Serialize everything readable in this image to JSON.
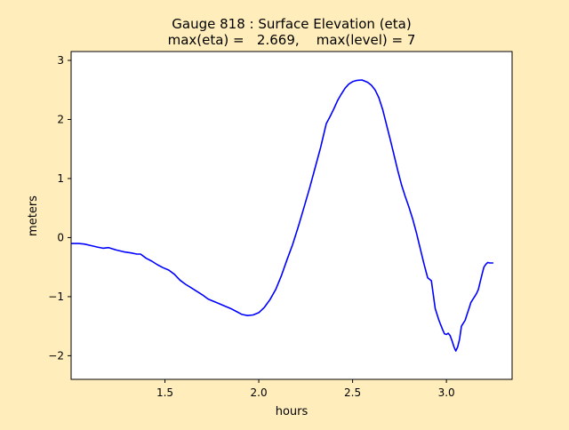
{
  "figure": {
    "background": "#ffeebb",
    "axes_background": "#ffffff",
    "line_color": "#0000ff"
  },
  "chart_data": {
    "type": "line",
    "title_line1": "Gauge 818 : Surface Elevation (eta)",
    "title_line2": "max(eta) =   2.669,    max(level) = 7",
    "xlabel": "hours",
    "ylabel": "meters",
    "xlim": [
      1.0,
      3.35
    ],
    "ylim": [
      -2.4,
      3.15
    ],
    "xticks": [
      1.5,
      2.0,
      2.5,
      3.0
    ],
    "xtick_labels": [
      "1.5",
      "2.0",
      "2.5",
      "3.0"
    ],
    "yticks": [
      -2,
      -1,
      0,
      1,
      2,
      3
    ],
    "ytick_labels": [
      "−2",
      "−1",
      "0",
      "1",
      "2",
      "3"
    ],
    "grid": false,
    "series": [
      {
        "color": "#0000ff",
        "x": [
          1.0,
          1.04,
          1.07,
          1.1,
          1.14,
          1.17,
          1.2,
          1.24,
          1.28,
          1.32,
          1.35,
          1.37,
          1.4,
          1.43,
          1.46,
          1.49,
          1.52,
          1.55,
          1.58,
          1.61,
          1.64,
          1.67,
          1.7,
          1.73,
          1.76,
          1.79,
          1.82,
          1.85,
          1.88,
          1.91,
          1.94,
          1.97,
          2.0,
          2.03,
          2.06,
          2.09,
          2.12,
          2.15,
          2.18,
          2.21,
          2.24,
          2.27,
          2.3,
          2.33,
          2.36,
          2.38,
          2.4,
          2.42,
          2.44,
          2.46,
          2.48,
          2.5,
          2.52,
          2.55,
          2.58,
          2.6,
          2.62,
          2.64,
          2.66,
          2.68,
          2.7,
          2.72,
          2.74,
          2.76,
          2.78,
          2.8,
          2.82,
          2.84,
          2.86,
          2.88,
          2.9,
          2.92,
          2.94,
          2.96,
          2.98,
          2.99,
          3.0,
          3.01,
          3.02,
          3.03,
          3.04,
          3.05,
          3.06,
          3.07,
          3.08,
          3.09,
          3.1,
          3.11,
          3.12,
          3.13,
          3.14,
          3.15,
          3.16,
          3.17,
          3.18,
          3.19,
          3.2,
          3.21,
          3.22,
          3.23,
          3.24,
          3.25
        ],
        "y": [
          -0.1,
          -0.1,
          -0.11,
          -0.13,
          -0.16,
          -0.18,
          -0.17,
          -0.21,
          -0.24,
          -0.26,
          -0.28,
          -0.28,
          -0.35,
          -0.4,
          -0.46,
          -0.51,
          -0.55,
          -0.62,
          -0.72,
          -0.79,
          -0.85,
          -0.91,
          -0.97,
          -1.04,
          -1.08,
          -1.12,
          -1.16,
          -1.2,
          -1.25,
          -1.3,
          -1.32,
          -1.31,
          -1.27,
          -1.18,
          -1.05,
          -0.88,
          -0.65,
          -0.38,
          -0.12,
          0.18,
          0.5,
          0.83,
          1.18,
          1.53,
          1.93,
          2.05,
          2.18,
          2.32,
          2.43,
          2.53,
          2.6,
          2.64,
          2.66,
          2.669,
          2.63,
          2.58,
          2.5,
          2.37,
          2.17,
          1.92,
          1.67,
          1.41,
          1.14,
          0.9,
          0.7,
          0.52,
          0.32,
          0.08,
          -0.18,
          -0.44,
          -0.68,
          -0.73,
          -1.2,
          -1.4,
          -1.56,
          -1.63,
          -1.64,
          -1.62,
          -1.66,
          -1.75,
          -1.85,
          -1.92,
          -1.85,
          -1.72,
          -1.5,
          -1.45,
          -1.4,
          -1.3,
          -1.2,
          -1.1,
          -1.05,
          -1.0,
          -0.95,
          -0.88,
          -0.75,
          -0.62,
          -0.5,
          -0.45,
          -0.42,
          -0.43,
          -0.43,
          -0.43
        ]
      }
    ]
  }
}
